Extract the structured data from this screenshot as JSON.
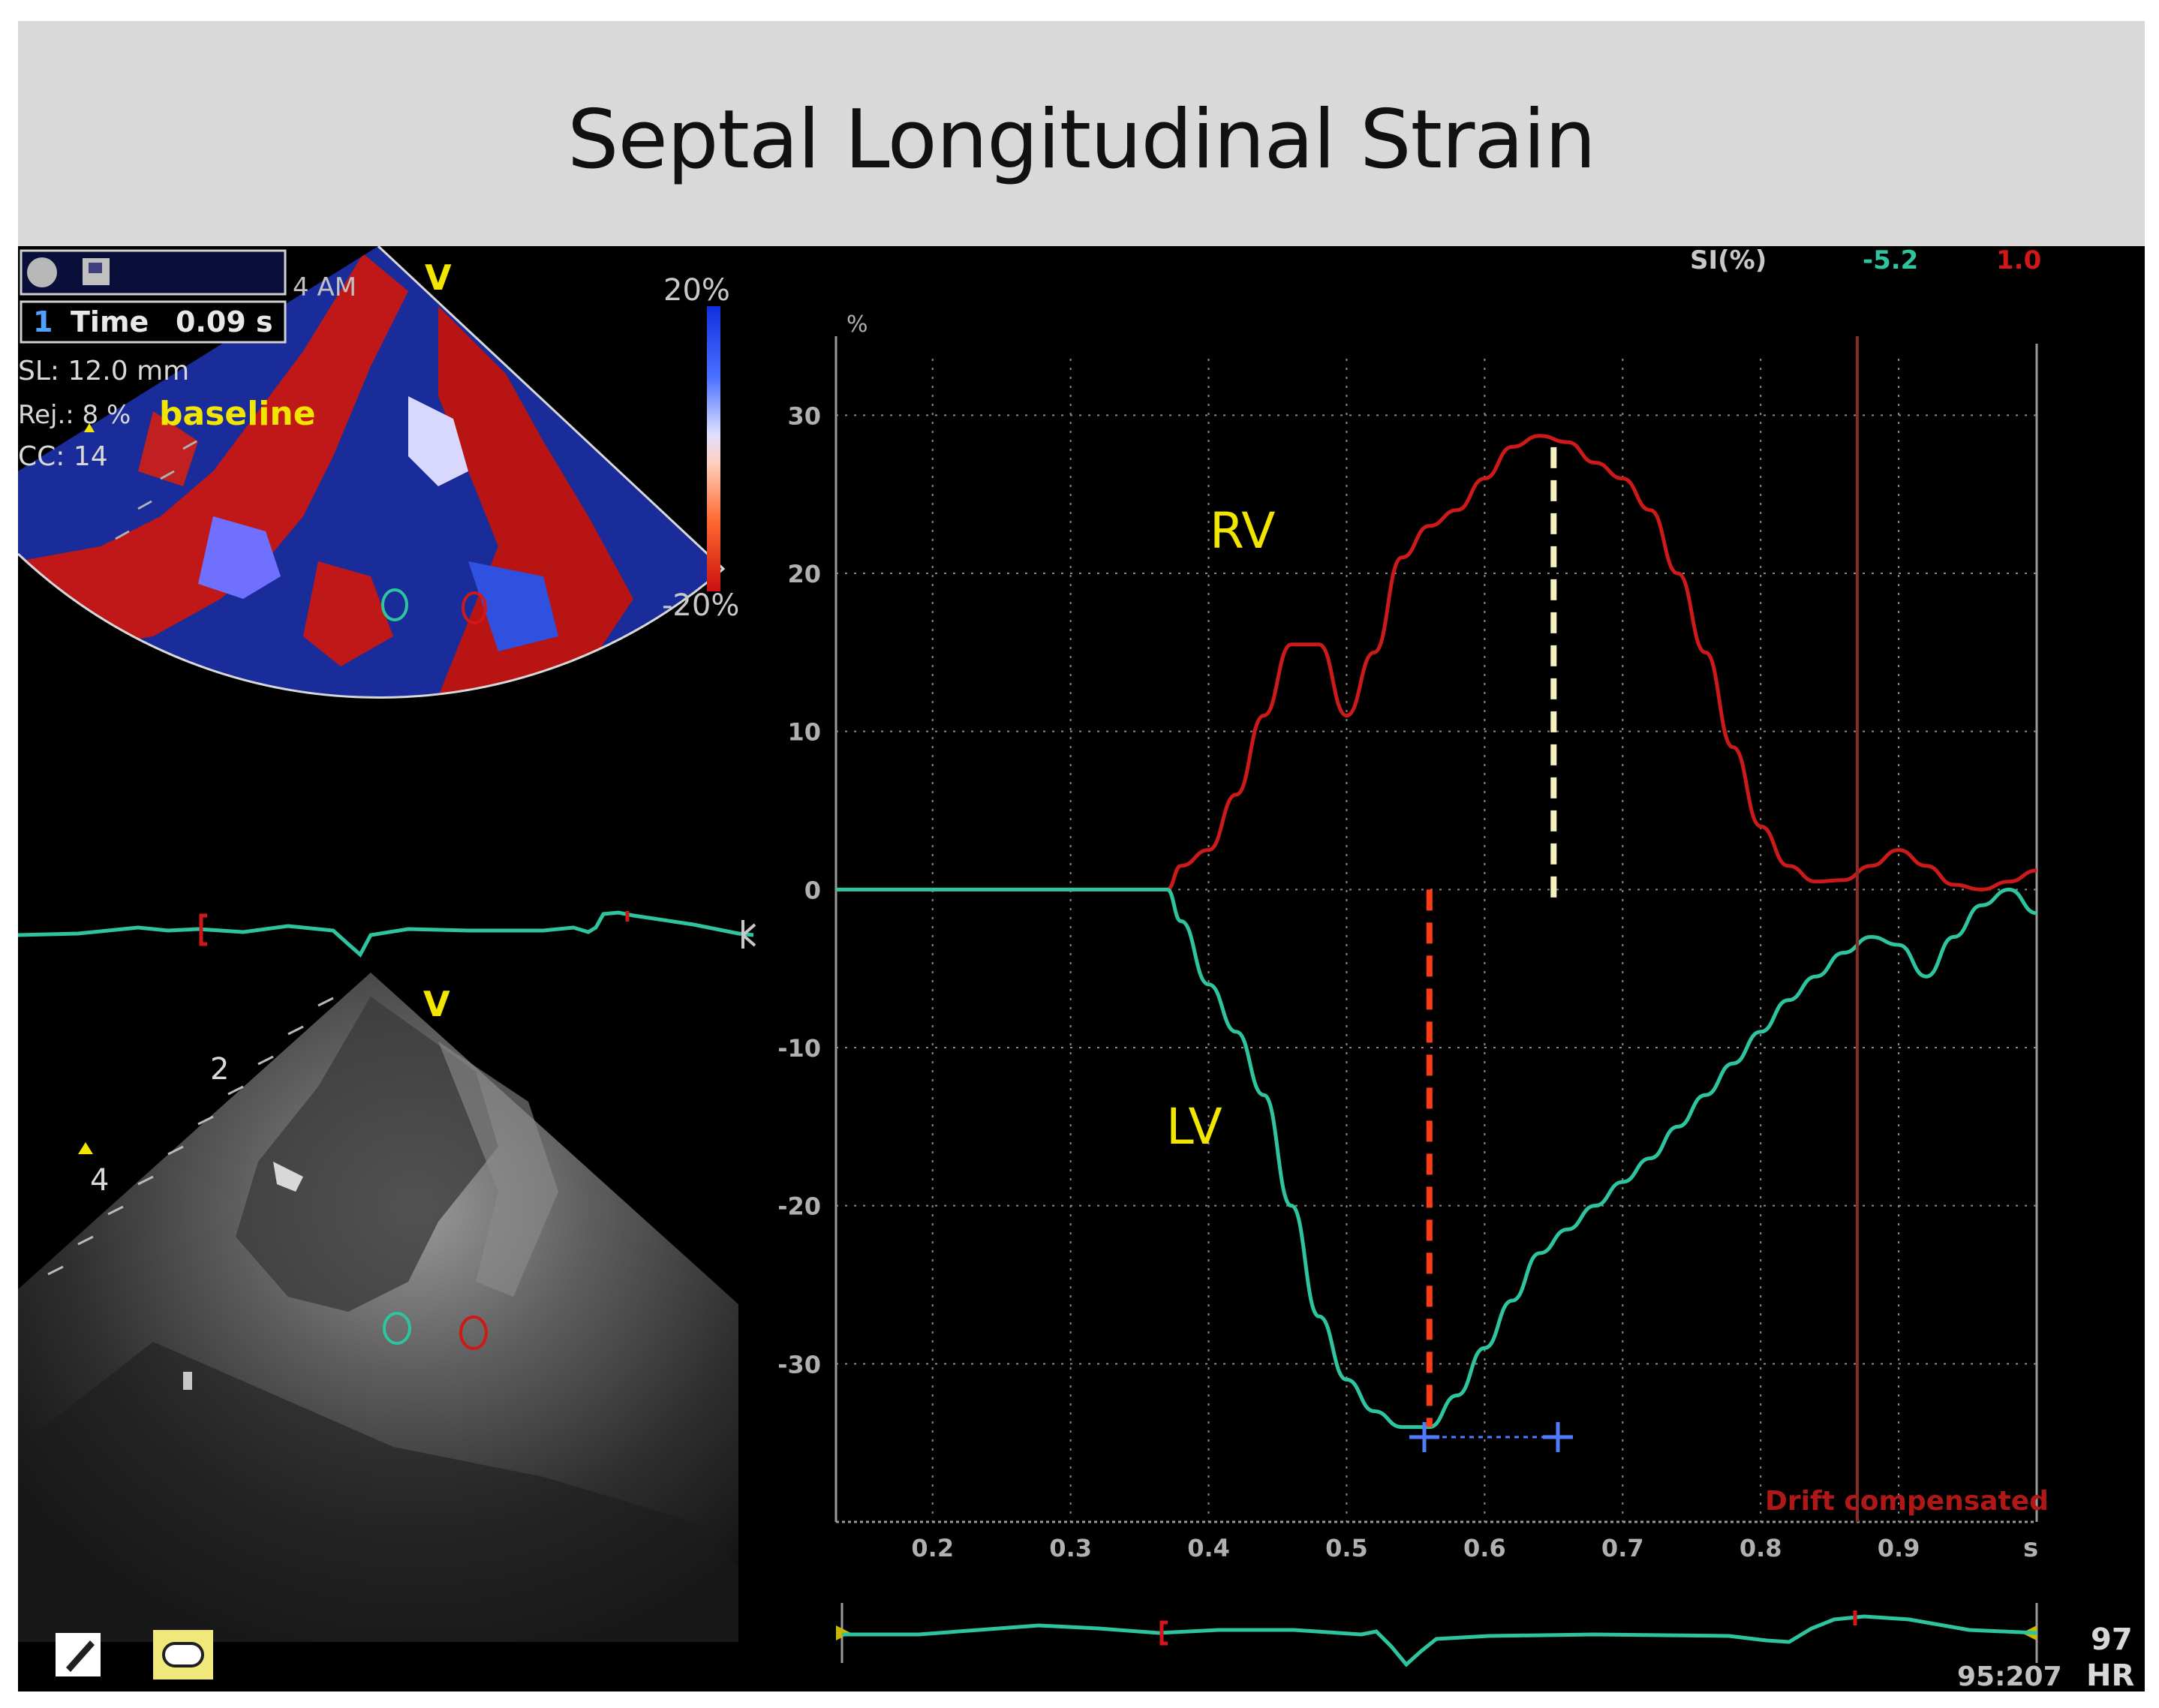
{
  "title": "Septal Longitudinal Strain",
  "toolbar": {
    "time_prefix": "1",
    "time_label": "Time",
    "time_value": "0.09 s"
  },
  "params": {
    "sl": "SL: 12.0 mm",
    "rej": "Rej.: 8 %",
    "cc": "CC: 14",
    "view_code": "4 AM",
    "baseline": "baseline"
  },
  "color_scale": {
    "top": "20%",
    "bottom": "-20%"
  },
  "markers": {
    "v_top": "V",
    "v_bottom": "V",
    "depth_2": "2",
    "depth_4": "4"
  },
  "graph": {
    "unit": "%",
    "si_label": "SI(%)",
    "si_lv": "-5.2",
    "si_rv": "1.0",
    "rv_label": "RV",
    "lv_label": "LV",
    "drift": "Drift compensated",
    "x_unit": "s",
    "y_ticks": [
      "30",
      "20",
      "10",
      "0",
      "-10",
      "-20",
      "-30"
    ],
    "x_ticks": [
      "0.2",
      "0.3",
      "0.4",
      "0.5",
      "0.6",
      "0.7",
      "0.8",
      "0.9"
    ]
  },
  "footer": {
    "hr_value": "97",
    "hr_label": "HR",
    "frame": "95:207"
  },
  "colors": {
    "rv": "#cc1a1a",
    "lv": "#2ec4a0",
    "label": "#f2e600",
    "marker_lv": "#ff3b14",
    "marker_rv": "#f5f0c0"
  },
  "chart_data": {
    "type": "line",
    "xlabel": "s",
    "ylabel": "%",
    "xlim": [
      0.13,
      1.0
    ],
    "ylim": [
      -40,
      35
    ],
    "grid": true,
    "series": [
      {
        "name": "RV",
        "x": [
          0.13,
          0.37,
          0.38,
          0.4,
          0.42,
          0.44,
          0.46,
          0.48,
          0.5,
          0.52,
          0.54,
          0.56,
          0.58,
          0.6,
          0.62,
          0.64,
          0.66,
          0.68,
          0.7,
          0.72,
          0.74,
          0.76,
          0.78,
          0.8,
          0.82,
          0.84,
          0.86,
          0.88,
          0.9,
          0.92,
          0.94,
          0.96,
          0.98,
          1.0
        ],
        "values": [
          0,
          0,
          1.5,
          2.5,
          6,
          11,
          15.5,
          15.5,
          11,
          15,
          21,
          23,
          24,
          26,
          28,
          28.7,
          28.3,
          27,
          26,
          24,
          20,
          15,
          9,
          4,
          1.5,
          0.5,
          0.6,
          1.5,
          2.5,
          1.5,
          0.3,
          0,
          0.5,
          1.2
        ]
      },
      {
        "name": "LV",
        "x": [
          0.13,
          0.37,
          0.38,
          0.4,
          0.42,
          0.44,
          0.46,
          0.48,
          0.5,
          0.52,
          0.54,
          0.56,
          0.58,
          0.6,
          0.62,
          0.64,
          0.66,
          0.68,
          0.7,
          0.72,
          0.74,
          0.76,
          0.78,
          0.8,
          0.82,
          0.84,
          0.86,
          0.88,
          0.9,
          0.92,
          0.94,
          0.96,
          0.98,
          1.0
        ],
        "values": [
          0,
          0,
          -2,
          -6,
          -9,
          -13,
          -20,
          -27,
          -31,
          -33,
          -34,
          -34,
          -32,
          -29,
          -26,
          -23,
          -21.5,
          -20,
          -18.5,
          -17,
          -15,
          -13,
          -11,
          -9,
          -7,
          -5.5,
          -4,
          -3,
          -3.5,
          -5.5,
          -3,
          -1,
          0,
          -1.5
        ]
      }
    ],
    "annotations": [
      {
        "type": "vline",
        "x": 0.56,
        "from": 0,
        "to": -34,
        "style": "dashed",
        "color": "#ff3b14"
      },
      {
        "type": "vline",
        "x": 0.65,
        "from": -0.5,
        "to": 28.5,
        "style": "dashed",
        "color": "#f5f0c0"
      },
      {
        "type": "vline",
        "x": 0.87,
        "style": "solid",
        "color": "#8a2a2a"
      }
    ]
  }
}
